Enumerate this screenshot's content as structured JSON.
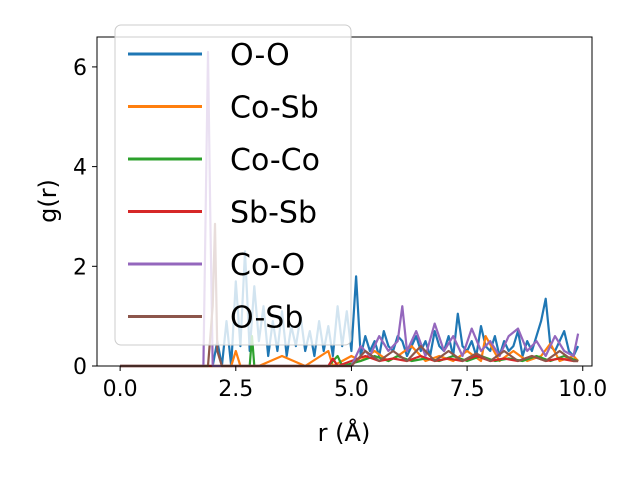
{
  "chart_data": {
    "type": "line",
    "xlabel": "r (Å)",
    "ylabel": "g(r)",
    "xlim": [
      -0.5,
      10.2
    ],
    "ylim": [
      0,
      6.6
    ],
    "xticks": [
      "0.0",
      "2.5",
      "5.0",
      "7.5",
      "10.0"
    ],
    "xtick_values": [
      0,
      2.5,
      5,
      7.5,
      10
    ],
    "yticks": [
      "0",
      "2",
      "4",
      "6"
    ],
    "ytick_values": [
      0,
      2,
      4,
      6
    ],
    "legend_position": "upper left",
    "series": [
      {
        "name": "O-O",
        "color": "#1f77b4",
        "x": [
          0,
          0.5,
          1.0,
          1.5,
          2.0,
          2.1,
          2.2,
          2.3,
          2.4,
          2.5,
          2.6,
          2.7,
          2.8,
          2.9,
          3.0,
          3.1,
          3.2,
          3.3,
          3.4,
          3.5,
          3.6,
          3.7,
          3.8,
          3.9,
          4.0,
          4.1,
          4.2,
          4.3,
          4.4,
          4.5,
          4.6,
          4.7,
          4.8,
          4.9,
          5.0,
          5.1,
          5.2,
          5.3,
          5.4,
          5.5,
          5.6,
          5.7,
          5.8,
          5.9,
          6.0,
          6.1,
          6.2,
          6.3,
          6.4,
          6.5,
          6.6,
          6.7,
          6.8,
          6.9,
          7.0,
          7.1,
          7.2,
          7.3,
          7.4,
          7.5,
          7.6,
          7.7,
          7.8,
          7.9,
          8.0,
          8.1,
          8.2,
          8.3,
          8.4,
          8.5,
          8.6,
          8.7,
          8.8,
          8.9,
          9.0,
          9.1,
          9.2,
          9.3,
          9.4,
          9.5,
          9.6,
          9.7,
          9.8,
          9.9
        ],
        "y": [
          0,
          0,
          0,
          0,
          0,
          0.5,
          0,
          0.9,
          0,
          1.7,
          0.4,
          2.3,
          0.3,
          1.6,
          0.5,
          1.2,
          0.2,
          0.9,
          0.3,
          1.1,
          0.2,
          0.8,
          0.4,
          1.0,
          0.3,
          0.7,
          0.2,
          0.9,
          0.3,
          0.8,
          0.2,
          1.2,
          0.4,
          1.1,
          0.3,
          1.8,
          0.2,
          0.6,
          0.3,
          0.5,
          0.2,
          0.7,
          0.4,
          0.3,
          0.6,
          0.5,
          0.2,
          0.4,
          0.6,
          0.3,
          0.5,
          0.2,
          0.7,
          0.4,
          0.3,
          0.6,
          0.2,
          1.05,
          0.4,
          0.3,
          0.5,
          0.2,
          0.8,
          0.4,
          0.3,
          0.6,
          0.2,
          0.5,
          0.3,
          0.4,
          0.7,
          0.2,
          0.5,
          0.3,
          0.6,
          0.9,
          1.35,
          0.4,
          0.3,
          0.5,
          0.7,
          0.3,
          0.2,
          0.4
        ]
      },
      {
        "name": "Co-Sb",
        "color": "#ff7f0e",
        "x": [
          0,
          1.0,
          2.0,
          2.4,
          2.5,
          2.6,
          3.0,
          3.5,
          4.0,
          4.5,
          4.6,
          5.0,
          5.2,
          5.5,
          5.8,
          6.0,
          6.3,
          6.6,
          6.9,
          7.2,
          7.5,
          7.8,
          7.9,
          8.2,
          8.5,
          8.8,
          9.1,
          9.3,
          9.5,
          9.8,
          9.9
        ],
        "y": [
          0,
          0,
          0,
          0,
          0.3,
          0,
          0,
          0.2,
          0,
          0.3,
          0,
          0.2,
          0.1,
          0.3,
          0.1,
          0.2,
          0.4,
          0.1,
          0.2,
          0.1,
          0.3,
          0.1,
          0.6,
          0.1,
          0.3,
          0.1,
          0.2,
          0.45,
          0.1,
          0.2,
          0.1
        ]
      },
      {
        "name": "Co-Co",
        "color": "#2ca02c",
        "x": [
          0,
          1.0,
          2.0,
          2.8,
          2.85,
          2.9,
          3.5,
          4.0,
          4.5,
          4.7,
          4.8,
          5.2,
          5.5,
          5.8,
          6.0,
          6.3,
          6.6,
          6.9,
          7.2,
          7.5,
          7.8,
          8.1,
          8.4,
          8.7,
          9.0,
          9.3,
          9.6,
          9.9
        ],
        "y": [
          0,
          0,
          0,
          0,
          0.6,
          0,
          0,
          0,
          0,
          0.2,
          0,
          0.1,
          0.2,
          0.1,
          0.2,
          0.1,
          0.15,
          0.1,
          0.2,
          0.1,
          0.2,
          0.1,
          0.15,
          0.1,
          0.2,
          0.1,
          0.2,
          0.1
        ]
      },
      {
        "name": "Sb-Sb",
        "color": "#d62728",
        "x": [
          0,
          1.0,
          2.0,
          3.0,
          4.0,
          4.5,
          4.6,
          4.7,
          5.0,
          5.3,
          5.6,
          5.9,
          6.2,
          6.5,
          6.8,
          7.1,
          7.4,
          7.7,
          8.0,
          8.3,
          8.6,
          8.9,
          9.2,
          9.5,
          9.8,
          9.9
        ],
        "y": [
          0,
          0,
          0,
          0,
          0,
          0,
          0.15,
          0,
          0.1,
          0.2,
          0.1,
          0.15,
          0.1,
          0.2,
          0.1,
          0.15,
          0.1,
          0.2,
          0.1,
          0.15,
          0.1,
          0.2,
          0.1,
          0.15,
          0.1,
          0.1
        ]
      },
      {
        "name": "Co-O",
        "color": "#9467bd",
        "x": [
          0,
          1.0,
          1.7,
          1.8,
          1.9,
          1.95,
          2.0,
          2.1,
          2.5,
          3.0,
          3.5,
          4.0,
          4.5,
          5.0,
          5.2,
          5.4,
          5.6,
          5.8,
          6.0,
          6.1,
          6.2,
          6.4,
          6.6,
          6.8,
          7.0,
          7.2,
          7.4,
          7.6,
          7.8,
          8.0,
          8.2,
          8.4,
          8.6,
          8.8,
          9.0,
          9.2,
          9.4,
          9.6,
          9.8,
          9.9
        ],
        "y": [
          0,
          0,
          0,
          0,
          6.3,
          3.0,
          0,
          0,
          0,
          0,
          0,
          0,
          0,
          0,
          0.4,
          0.2,
          0.6,
          0.3,
          0.5,
          1.2,
          0.3,
          0.7,
          0.2,
          0.85,
          0.3,
          0.6,
          0.2,
          0.75,
          0.3,
          0.5,
          0.2,
          0.6,
          0.75,
          0.3,
          0.5,
          0.2,
          0.6,
          0.3,
          0.2,
          0.65
        ]
      },
      {
        "name": "O-Sb",
        "color": "#8c564b",
        "x": [
          0,
          1.0,
          1.8,
          1.9,
          2.0,
          2.05,
          2.1,
          2.2,
          2.5,
          3.0,
          3.5,
          4.0,
          4.5,
          5.0,
          5.3,
          5.6,
          5.9,
          6.2,
          6.5,
          6.8,
          7.1,
          7.4,
          7.7,
          8.0,
          8.3,
          8.6,
          8.9,
          9.2,
          9.5,
          9.8,
          9.9
        ],
        "y": [
          0,
          0,
          0,
          0,
          1.2,
          2.85,
          0.3,
          0,
          0,
          0,
          0,
          0,
          0,
          0,
          0.3,
          0.1,
          0.3,
          0.1,
          0.4,
          0.1,
          0.3,
          0.1,
          0.25,
          0.1,
          0.3,
          0.1,
          0.2,
          0.1,
          0.3,
          0.1,
          0.1
        ]
      }
    ]
  }
}
